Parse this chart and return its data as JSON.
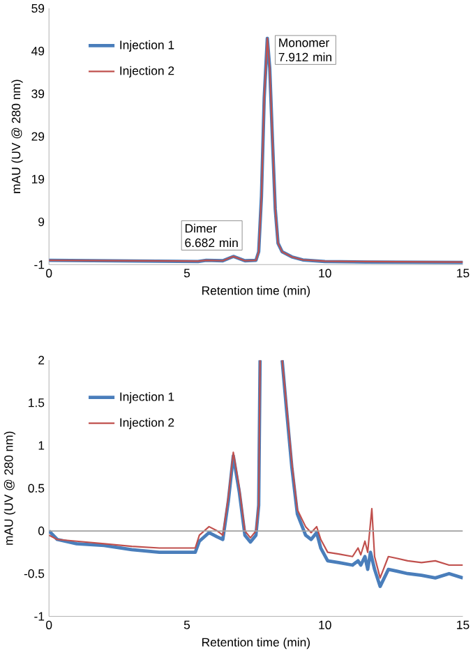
{
  "chart_data": [
    {
      "type": "line",
      "xlabel": "Retention time (min)",
      "ylabel": "mAU (UV @ 280 nm)",
      "xlim": [
        0,
        15
      ],
      "ylim": [
        -1,
        59
      ],
      "xticks": [
        0,
        5,
        10,
        15
      ],
      "yticks": [
        -1,
        9,
        19,
        29,
        39,
        49,
        59
      ],
      "legend": "top left",
      "grid": false,
      "annotations": [
        {
          "text": "Dimer 6.682 min",
          "x": 6.682,
          "y": 0.9
        },
        {
          "text": "Monomer 7.912 min",
          "x": 7.912,
          "y": 52
        }
      ],
      "series": [
        {
          "name": "Injection 1",
          "color": "#4a7ebb",
          "x": [
            0,
            5.4,
            5.7,
            6.3,
            6.682,
            7.1,
            7.5,
            7.6,
            7.7,
            7.8,
            7.912,
            8.0,
            8.1,
            8.2,
            8.3,
            8.45,
            8.8,
            9.2,
            10,
            11.5,
            15
          ],
          "values": [
            0,
            -0.3,
            0,
            -0.1,
            0.9,
            -0.1,
            0,
            2,
            15,
            38,
            52,
            45,
            28,
            12,
            4,
            2,
            0.8,
            0.1,
            -0.3,
            -0.4,
            -0.5
          ]
        },
        {
          "name": "Injection 2",
          "color": "#c0504d",
          "x": [
            0,
            5.4,
            5.7,
            6.3,
            6.682,
            7.1,
            7.5,
            7.6,
            7.7,
            7.8,
            7.912,
            8.0,
            8.1,
            8.2,
            8.3,
            8.45,
            8.8,
            9.2,
            10,
            11.5,
            15
          ],
          "values": [
            0,
            -0.2,
            0,
            -0.1,
            0.9,
            -0.1,
            0,
            2,
            15,
            38,
            52,
            45,
            28,
            12,
            4,
            2,
            0.8,
            0.1,
            -0.2,
            -0.3,
            -0.4
          ]
        }
      ]
    },
    {
      "type": "line",
      "xlabel": "Retention time (min)",
      "ylabel": "mAU (UV @ 280 nm)",
      "xlim": [
        0,
        15
      ],
      "ylim": [
        -1,
        2
      ],
      "xticks": [
        0,
        5,
        10,
        15
      ],
      "yticks": [
        -1,
        -0.5,
        0,
        0.5,
        1,
        1.5,
        2
      ],
      "legend": "top left",
      "grid": false,
      "ref_lines": [
        {
          "axis": "y",
          "value": 0,
          "color": "#a0a0a0"
        }
      ],
      "series": [
        {
          "name": "Injection 1",
          "color": "#4a7ebb",
          "x": [
            0,
            0.3,
            1,
            2,
            3,
            4,
            5,
            5.3,
            5.45,
            5.8,
            6.1,
            6.3,
            6.5,
            6.68,
            6.9,
            7.1,
            7.3,
            7.5,
            7.6,
            7.65,
            7.7,
            8.45,
            8.6,
            8.8,
            9.0,
            9.3,
            9.5,
            9.7,
            9.85,
            10.1,
            10.5,
            11.0,
            11.2,
            11.3,
            11.45,
            11.55,
            11.65,
            11.8,
            12.0,
            12.3,
            12.6,
            13,
            13.5,
            14,
            14.5,
            15
          ],
          "values": [
            0,
            -0.1,
            -0.15,
            -0.17,
            -0.22,
            -0.25,
            -0.25,
            -0.25,
            -0.12,
            -0.02,
            -0.07,
            -0.1,
            0.35,
            0.88,
            0.45,
            -0.05,
            -0.13,
            -0.05,
            0.3,
            2,
            null,
            2,
            1.45,
            0.75,
            0.2,
            -0.05,
            -0.1,
            -0.02,
            -0.2,
            -0.35,
            -0.37,
            -0.4,
            -0.35,
            -0.4,
            -0.3,
            -0.45,
            -0.25,
            -0.45,
            -0.65,
            -0.45,
            -0.47,
            -0.5,
            -0.52,
            -0.55,
            -0.5,
            -0.55
          ]
        },
        {
          "name": "Injection 2",
          "color": "#c0504d",
          "x": [
            0,
            0.3,
            1,
            2,
            3,
            4,
            5,
            5.3,
            5.45,
            5.8,
            6.1,
            6.3,
            6.5,
            6.68,
            6.9,
            7.1,
            7.3,
            7.5,
            7.6,
            7.65,
            7.7,
            8.45,
            8.6,
            8.8,
            9.0,
            9.3,
            9.5,
            9.7,
            9.85,
            10.1,
            10.5,
            11.0,
            11.2,
            11.3,
            11.45,
            11.55,
            11.7,
            11.8,
            12.0,
            12.3,
            12.6,
            13,
            13.5,
            14,
            14.5,
            15
          ],
          "values": [
            -0.05,
            -0.1,
            -0.12,
            -0.15,
            -0.18,
            -0.2,
            -0.2,
            -0.2,
            -0.05,
            0.05,
            0,
            -0.05,
            0.4,
            0.92,
            0.5,
            0,
            -0.08,
            0,
            0.3,
            2,
            null,
            2,
            1.5,
            0.8,
            0.25,
            0.05,
            -0.02,
            0.05,
            -0.1,
            -0.25,
            -0.27,
            -0.3,
            -0.2,
            -0.28,
            -0.12,
            -0.25,
            0.26,
            -0.3,
            -0.55,
            -0.3,
            -0.32,
            -0.35,
            -0.37,
            -0.35,
            -0.4,
            -0.4
          ]
        }
      ]
    }
  ]
}
